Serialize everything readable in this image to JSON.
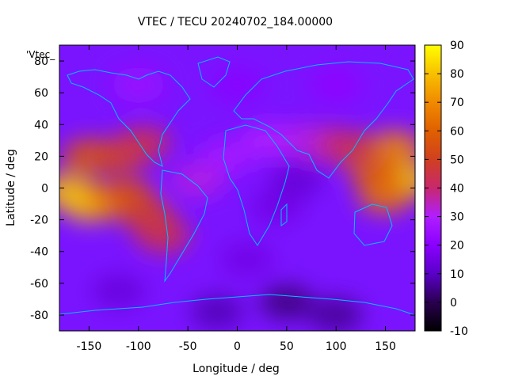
{
  "chart_data": {
    "type": "heatmap",
    "title": "VTEC / TECU 20240702_184.00000",
    "key_label": "'Vtec_",
    "xlabel": "Longitude / deg",
    "ylabel": "Latitude / deg",
    "xlim": [
      -180,
      180
    ],
    "ylim": [
      -90,
      90
    ],
    "x_ticks": [
      -150,
      -100,
      -50,
      0,
      50,
      100,
      150
    ],
    "y_ticks": [
      -80,
      -60,
      -40,
      -20,
      0,
      20,
      40,
      60,
      80
    ],
    "colorbar": {
      "range": [
        -10,
        90
      ],
      "ticks": [
        -10,
        0,
        10,
        20,
        30,
        40,
        50,
        60,
        70,
        80,
        90
      ],
      "colormap": [
        "#000000",
        "#2a0050",
        "#5a00c8",
        "#8a00ff",
        "#b01eff",
        "#c8286e",
        "#d04020",
        "#e06000",
        "#f08a00",
        "#f8c000",
        "#ffff00"
      ]
    },
    "coastline_color": "#00bfff",
    "grid": false,
    "features": [
      {
        "lon": -172,
        "lat": -2,
        "vtec": 80
      },
      {
        "lon": -150,
        "lat": -10,
        "vtec": 82
      },
      {
        "lon": -130,
        "lat": -8,
        "vtec": 70
      },
      {
        "lon": -110,
        "lat": -5,
        "vtec": 55
      },
      {
        "lon": -90,
        "lat": -18,
        "vtec": 50
      },
      {
        "lon": -75,
        "lat": -30,
        "vtec": 45
      },
      {
        "lon": -150,
        "lat": 20,
        "vtec": 58
      },
      {
        "lon": -120,
        "lat": 20,
        "vtec": 52
      },
      {
        "lon": -95,
        "lat": 28,
        "vtec": 45
      },
      {
        "lon": 170,
        "lat": 5,
        "vtec": 82
      },
      {
        "lon": 160,
        "lat": 25,
        "vtec": 70
      },
      {
        "lon": 150,
        "lat": -5,
        "vtec": 65
      },
      {
        "lon": 140,
        "lat": 10,
        "vtec": 60
      },
      {
        "lon": 115,
        "lat": 25,
        "vtec": 48
      },
      {
        "lon": 90,
        "lat": 28,
        "vtec": 40
      },
      {
        "lon": 60,
        "lat": 30,
        "vtec": 32
      },
      {
        "lon": 30,
        "lat": 30,
        "vtec": 30
      },
      {
        "lon": -40,
        "lat": 5,
        "vtec": 32
      },
      {
        "lon": -10,
        "lat": 20,
        "vtec": 28
      },
      {
        "lon": 40,
        "lat": -12,
        "vtec": 15
      },
      {
        "lon": 60,
        "lat": 5,
        "vtec": 12
      },
      {
        "lon": 10,
        "lat": -45,
        "vtec": 15
      },
      {
        "lon": 50,
        "lat": -72,
        "vtec": 3
      },
      {
        "lon": 100,
        "lat": -80,
        "vtec": 5
      },
      {
        "lon": -20,
        "lat": -78,
        "vtec": 8
      },
      {
        "lon": -120,
        "lat": -65,
        "vtec": 13
      },
      {
        "lon": 0,
        "lat": 65,
        "vtec": 20
      },
      {
        "lon": 100,
        "lat": 65,
        "vtec": 22
      },
      {
        "lon": -100,
        "lat": 65,
        "vtec": 25
      }
    ]
  }
}
